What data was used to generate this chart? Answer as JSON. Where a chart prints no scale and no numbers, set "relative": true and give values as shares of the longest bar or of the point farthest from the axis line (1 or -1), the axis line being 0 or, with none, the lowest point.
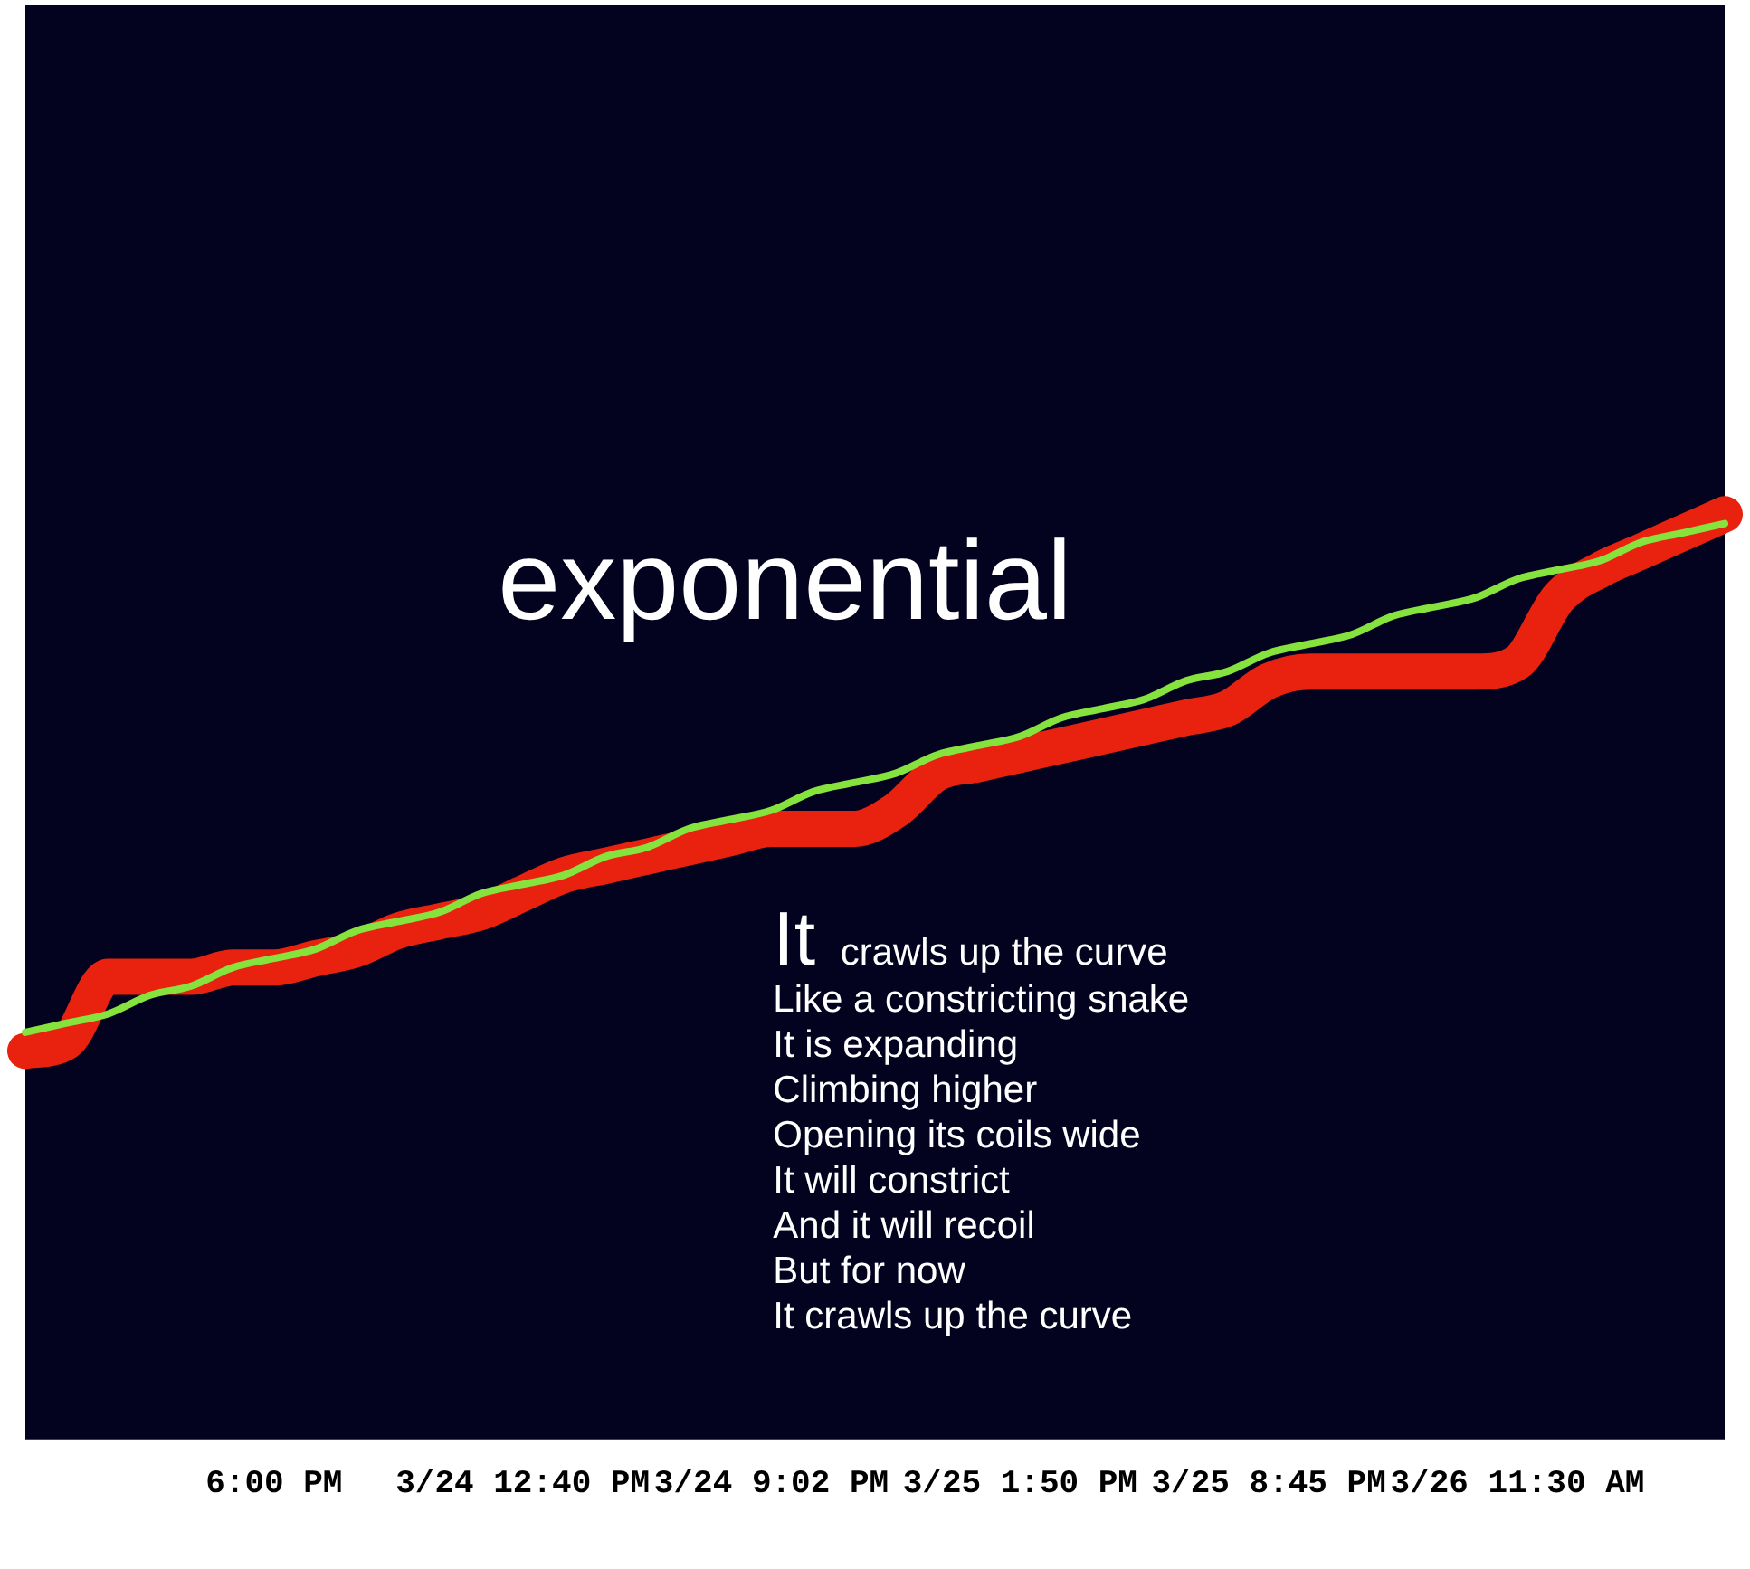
{
  "chart_data": {
    "type": "line",
    "title": "exponential",
    "annotations": [
      "It crawls up the curve\nLike a constricting snake\nIt is expanding\nClimbing higher\nOpening its coils wide\nIt will constrict\nAnd it will recoil\nBut for now\nIt crawls up the curve"
    ],
    "categories": [
      null,
      null,
      null,
      null,
      null,
      null,
      "6:00 PM",
      null,
      null,
      null,
      null,
      null,
      "3/24 12:40 PM",
      null,
      null,
      null,
      null,
      null,
      "3/24 9:02 PM",
      null,
      null,
      null,
      null,
      null,
      "3/25 1:50 PM",
      null,
      null,
      null,
      null,
      null,
      "3/25 8:45 PM",
      null,
      null,
      null,
      null,
      null,
      "3/26 11:30 AM",
      null,
      null,
      null,
      null,
      null
    ],
    "relative": true,
    "series": [
      {
        "color": "#e8220e",
        "values": [
          0.42,
          0.43,
          0.5,
          0.5,
          0.5,
          0.51,
          0.51,
          0.52,
          0.53,
          0.55,
          0.56,
          0.57,
          0.59,
          0.61,
          0.62,
          0.63,
          0.64,
          0.65,
          0.66,
          0.66,
          0.66,
          0.68,
          0.72,
          0.73,
          0.74,
          0.75,
          0.76,
          0.77,
          0.78,
          0.79,
          0.82,
          0.83,
          0.83,
          0.83,
          0.83,
          0.83,
          0.84,
          0.91,
          0.94,
          0.96,
          0.98,
          1
        ]
      },
      {
        "color": "#86e23c",
        "values": [
          0.44,
          0.45,
          0.46,
          0.48,
          0.49,
          0.51,
          0.52,
          0.53,
          0.55,
          0.56,
          0.57,
          0.59,
          0.6,
          0.61,
          0.63,
          0.64,
          0.66,
          0.67,
          0.68,
          0.7,
          0.71,
          0.72,
          0.74,
          0.75,
          0.76,
          0.78,
          0.79,
          0.8,
          0.82,
          0.83,
          0.85,
          0.86,
          0.87,
          0.89,
          0.9,
          0.91,
          0.93,
          0.94,
          0.95,
          0.97,
          0.98,
          0.99
        ]
      }
    ],
    "legend": false,
    "marker": "none"
  }
}
